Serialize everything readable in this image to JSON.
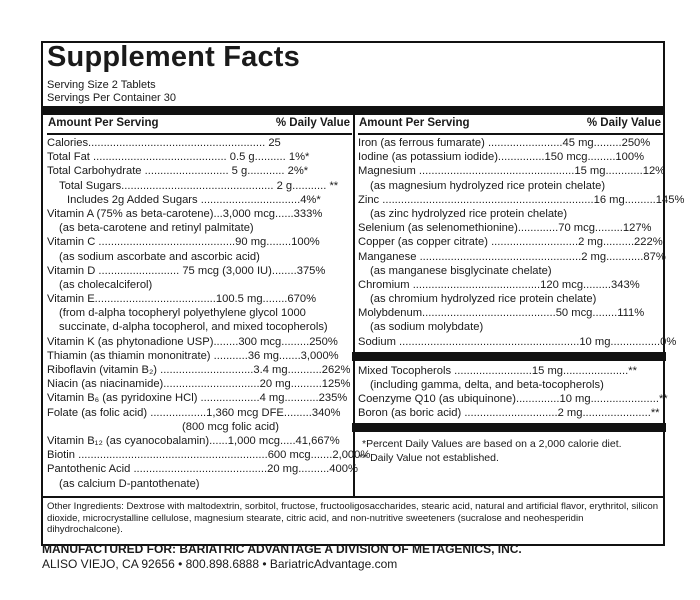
{
  "title": "Supplement Facts",
  "serving_size": "Serving Size 2 Tablets",
  "servings_per_container": "Servings Per Container 30",
  "header": {
    "amount": "Amount Per Serving",
    "daily_value": "% Daily Value"
  },
  "left_rows": [
    {
      "t": "Calories......................................................... 25",
      "dv": ""
    },
    {
      "t": "Total Fat ........................................... 0.5 g.......... 1%*",
      "dv": ""
    },
    {
      "t": "Total Carbohydrate ........................... 5 g............ 2%*",
      "dv": ""
    },
    {
      "t": "Total Sugars................................................. 2 g........... **",
      "dv": "",
      "cls": "in1"
    },
    {
      "t": "Includes 2g Added Sugars ................................4%*",
      "dv": "",
      "cls": "in2"
    },
    {
      "t": "Vitamin A (75% as beta-carotene)...3,000 mcg......333%",
      "dv": ""
    },
    {
      "t": "(as beta-carotene and retinyl palmitate)",
      "dv": "",
      "cls": "sub"
    },
    {
      "t": "Vitamin C ............................................90 mg........100%",
      "dv": ""
    },
    {
      "t": "(as sodium ascorbate and ascorbic acid)",
      "dv": "",
      "cls": "sub"
    },
    {
      "t": "Vitamin D .......................... 75 mcg (3,000 IU)........375%",
      "dv": ""
    },
    {
      "t": "(as cholecalciferol)",
      "dv": "",
      "cls": "sub"
    },
    {
      "t": "Vitamin E.......................................100.5 mg........670%",
      "dv": ""
    },
    {
      "t": "(from d-alpha tocopheryl polyethylene glycol 1000",
      "dv": "",
      "cls": "sub"
    },
    {
      "t": "succinate, d-alpha tocopherol, and mixed tocopherols)",
      "dv": "",
      "cls": "sub"
    },
    {
      "t": "Vitamin K (as phytonadione USP)........300 mcg.........250%",
      "dv": ""
    },
    {
      "t": "Thiamin (as thiamin mononitrate) ...........36 mg.......3,000%",
      "dv": ""
    },
    {
      "t": "Riboflavin (vitamin B₂) ..............................3.4 mg...........262%",
      "dv": ""
    },
    {
      "t": "Niacin (as niacinamide)...............................20 mg..........125%",
      "dv": ""
    },
    {
      "t": "Vitamin B₆ (as pyridoxine HCl) ...................4 mg...........235%",
      "dv": ""
    },
    {
      "t": "Folate (as folic acid) ..................1,360 mcg DFE.........340%",
      "dv": ""
    },
    {
      "t": "(800 mcg folic acid)",
      "dv": "",
      "cls": "folic"
    },
    {
      "t": "Vitamin B₁₂ (as cyanocobalamin)......1,000 mcg.....41,667%",
      "dv": ""
    },
    {
      "t": "Biotin .............................................................600 mcg.......2,000%",
      "dv": ""
    },
    {
      "t": "Pantothenic Acid ...........................................20 mg..........400%",
      "dv": ""
    },
    {
      "t": "(as calcium D-pantothenate)",
      "dv": "",
      "cls": "sub"
    }
  ],
  "right_rows": [
    {
      "t": "Iron (as ferrous fumarate) ........................45 mg.........250%",
      "dv": ""
    },
    {
      "t": "Iodine (as potassium iodide)...............150 mcg.........100%",
      "dv": ""
    },
    {
      "t": "Magnesium ..................................................15 mg............12%",
      "dv": ""
    },
    {
      "t": "(as magnesium hydrolyzed rice protein chelate)",
      "dv": "",
      "cls": "sub"
    },
    {
      "t": "Zinc ....................................................................16 mg..........145%",
      "dv": ""
    },
    {
      "t": "(as zinc hydrolyzed rice protein chelate)",
      "dv": "",
      "cls": "sub"
    },
    {
      "t": "Selenium (as selenomethionine).............70 mcg.........127%",
      "dv": ""
    },
    {
      "t": "Copper (as copper citrate) ............................2 mg..........222%",
      "dv": ""
    },
    {
      "t": "Manganese ....................................................2 mg............87%",
      "dv": ""
    },
    {
      "t": "(as manganese bisglycinate chelate)",
      "dv": "",
      "cls": "sub"
    },
    {
      "t": "Chromium .........................................120 mcg.........343%",
      "dv": ""
    },
    {
      "t": "(as chromium hydrolyzed rice protein chelate)",
      "dv": "",
      "cls": "sub"
    },
    {
      "t": "Molybdenum...........................................50 mcg........111%",
      "dv": ""
    },
    {
      "t": "(as sodium molybdate)",
      "dv": "",
      "cls": "sub"
    },
    {
      "t": "Sodium ..........................................................10 mg................0%",
      "dv": ""
    }
  ],
  "right_rows2": [
    {
      "t": "Mixed Tocopherols .........................15 mg.....................**",
      "dv": ""
    },
    {
      "t": "(including gamma, delta, and beta-tocopherols)",
      "dv": "",
      "cls": "sub"
    },
    {
      "t": "Coenzyme Q10 (as ubiquinone)..............10 mg......................**",
      "dv": ""
    },
    {
      "t": "Boron (as boric acid) ..............................2 mg......................**",
      "dv": ""
    }
  ],
  "footnotes": [
    "*Percent Daily Values are based on a 2,000 calorie diet.",
    "** Daily Value not established."
  ],
  "other_ingredients": "Other Ingredients: Dextrose with maltodextrin, sorbitol, fructose, fructooligosaccharides, stearic acid, natural and artificial flavor, erythritol, silicon dioxide, microcrystalline cellulose, magnesium stearate, citric acid, and non-nutritive sweeteners (sucralose and neohesperidin dihydrochalcone).",
  "manufacturer": "MANUFACTURED FOR: BARIATRIC ADVANTAGE A DIVISION OF METAGENICS, INC.",
  "address": "ALISO VIEJO, CA 92656 • 800.898.6888 • BariatricAdvantage.com"
}
